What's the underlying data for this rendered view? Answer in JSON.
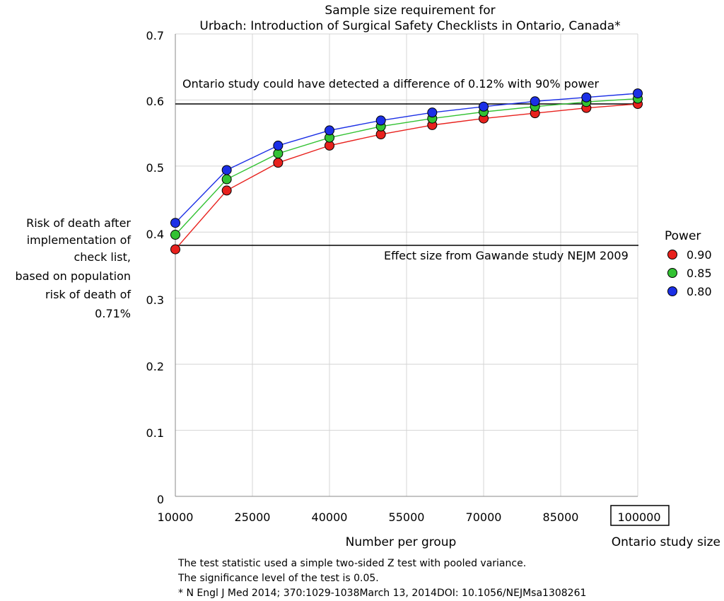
{
  "chart_data": {
    "type": "line",
    "title_lines": [
      "Sample size requirement for",
      "Urbach: Introduction of Surgical Safety Checklists in Ontario, Canada*"
    ],
    "xlabel": "Number per group",
    "ylabel_lines": [
      "Risk of death after",
      "implementation of",
      "check list,",
      "based on population",
      "risk of death of",
      "0.71%"
    ],
    "xlim": [
      10000,
      100000
    ],
    "ylim": [
      0,
      0.7
    ],
    "x_ticks": [
      "10000",
      "25000",
      "40000",
      "55000",
      "70000",
      "85000",
      "100000"
    ],
    "y_ticks": [
      "0",
      "0.1",
      "0.2",
      "0.3",
      "0.4",
      "0.5",
      "0.6",
      "0.7"
    ],
    "x": [
      10000,
      20000,
      30000,
      40000,
      50000,
      60000,
      70000,
      80000,
      90000,
      100000
    ],
    "series": [
      {
        "name": "0.90",
        "color": "#e8211d",
        "values": [
          0.374,
          0.463,
          0.505,
          0.531,
          0.548,
          0.562,
          0.572,
          0.58,
          0.588,
          0.594
        ]
      },
      {
        "name": "0.85",
        "color": "#33c233",
        "values": [
          0.396,
          0.48,
          0.519,
          0.543,
          0.56,
          0.572,
          0.582,
          0.59,
          0.597,
          0.602
        ]
      },
      {
        "name": "0.80",
        "color": "#1b2fe6",
        "values": [
          0.414,
          0.494,
          0.531,
          0.554,
          0.569,
          0.581,
          0.59,
          0.598,
          0.604,
          0.61
        ]
      }
    ],
    "hlines": [
      {
        "y": 0.594,
        "label": "Ontario study could have detected a difference of 0.12% with 90% power"
      },
      {
        "y": 0.38,
        "label": "Effect size from Gawande study NEJM 2009"
      }
    ],
    "legend": {
      "title": "Power",
      "placement": "right"
    },
    "highlight_tick": "100000",
    "highlight_label": "Ontario study size",
    "grid": true
  },
  "footnotes": [
    "The test statistic used a simple two-sided Z test with pooled variance.",
    "The significance level of the test is 0.05.",
    "* N Engl J Med 2014; 370:1029-1038March 13, 2014DOI: 10.1056/NEJMsa1308261"
  ]
}
